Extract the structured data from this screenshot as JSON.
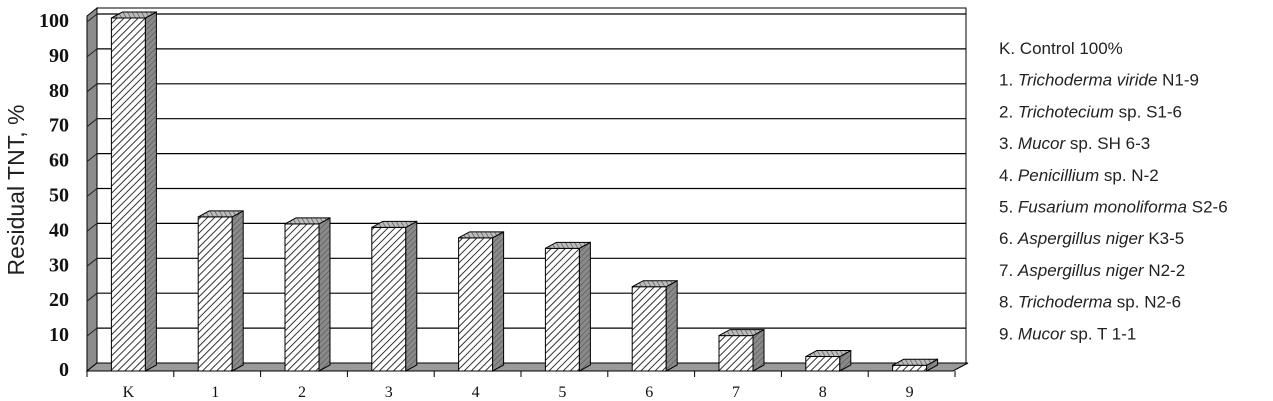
{
  "chart_data": {
    "type": "bar",
    "ylabel": "Residual TNT, %",
    "xlabel": "",
    "title": "",
    "ylim": [
      0,
      100
    ],
    "yticks": [
      0,
      10,
      20,
      30,
      40,
      50,
      60,
      70,
      80,
      90,
      100
    ],
    "grid": true,
    "legend_position": "right",
    "categories": [
      "K",
      "1",
      "2",
      "3",
      "4",
      "5",
      "6",
      "7",
      "8",
      "9"
    ],
    "values": [
      100,
      43,
      41,
      40,
      37,
      34,
      23,
      9,
      3,
      0.5
    ],
    "legend": [
      {
        "key": "K.",
        "italic": "",
        "text": "Control 100%"
      },
      {
        "key": "1.",
        "italic": "Trichoderma viride",
        "text": "N1-9"
      },
      {
        "key": "2.",
        "italic": "Trichotecium",
        "text": "sp. S1-6"
      },
      {
        "key": "3.",
        "italic": "Mucor",
        "text": "sp. SH 6-3"
      },
      {
        "key": "4.",
        "italic": "Penicillium",
        "text": "sp. N-2"
      },
      {
        "key": "5.",
        "italic": "Fusarium monoliforma",
        "text": "S2-6"
      },
      {
        "key": "6.",
        "italic": "Aspergillus niger",
        "text": "K3-5"
      },
      {
        "key": "7.",
        "italic": "Aspergillus niger",
        "text": "N2-2"
      },
      {
        "key": "8.",
        "italic": "Trichoderma",
        "text": "sp. N2-6"
      },
      {
        "key": "9.",
        "italic": "Mucor",
        "text": "sp. T 1-1"
      }
    ],
    "colors": {
      "bar_front": "#ffffff",
      "bar_hatch": "#333333",
      "bar_side": "#8a8a8a",
      "wall": "#ffffff",
      "wall_side": "#8c8c8c",
      "floor": "#9a9a9a",
      "grid": "#000000"
    }
  }
}
